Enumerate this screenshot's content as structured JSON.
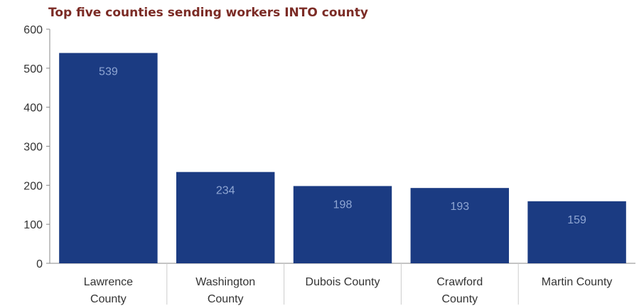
{
  "chart_data": {
    "type": "bar",
    "title": "Top five counties sending workers INTO county",
    "categories": [
      [
        "Lawrence",
        "County"
      ],
      [
        "Washington",
        "County"
      ],
      [
        "Dubois County"
      ],
      [
        "Crawford",
        "County"
      ],
      [
        "Martin County"
      ]
    ],
    "values": [
      539,
      234,
      198,
      193,
      159
    ],
    "ylim": [
      0,
      600
    ],
    "yticks": [
      0,
      100,
      200,
      300,
      400,
      500,
      600
    ],
    "grid": false,
    "bar_color": "#1b3b82",
    "data_label_color": "#8fa6d3",
    "title_color": "#7b2b25"
  }
}
